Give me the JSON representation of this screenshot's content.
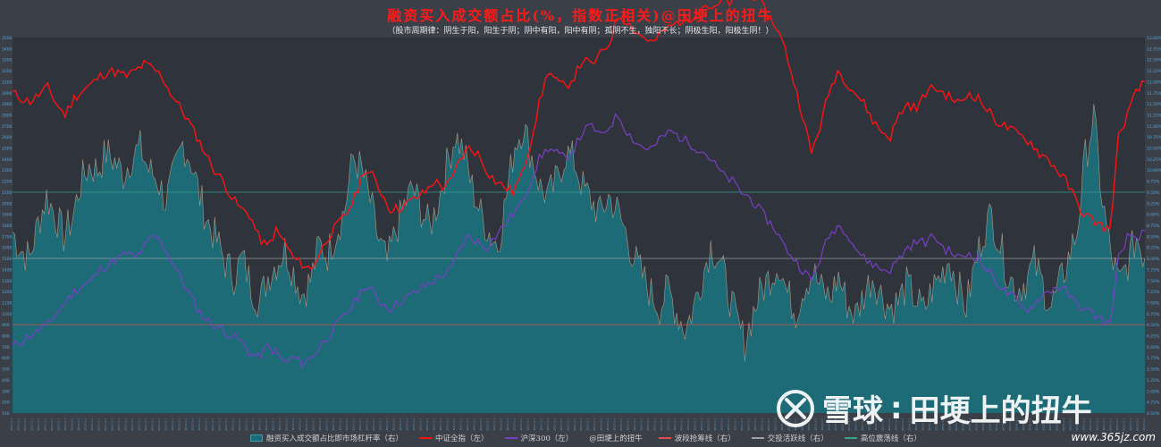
{
  "chart_data": {
    "type": "line",
    "title": "融资买入成交额占比(%，指数正相关)@田埂上的扭牛",
    "subtitle": "（股市周期律：阴生于阳，阳生于阴；阴中有阳，阳中有阴；孤阴不生，独阳不长；阴极生阳，阳极生阴！）",
    "y_left_ticks": [
      "3500",
      "3400",
      "3300",
      "3200",
      "3100",
      "3000",
      "2900",
      "2800",
      "2700",
      "2600",
      "2500",
      "2400",
      "2300",
      "2200",
      "2100",
      "2000",
      "1900",
      "1800",
      "1700",
      "1600",
      "1500",
      "1400",
      "1300",
      "1200",
      "1100",
      "1000",
      "900",
      "800",
      "700",
      "600",
      "500",
      "400",
      "300",
      "200",
      "100"
    ],
    "y_right_ticks": [
      "13.00%",
      "12.75%",
      "12.50%",
      "12.25%",
      "12.00%",
      "11.75%",
      "11.50%",
      "11.25%",
      "11.00%",
      "10.75%",
      "10.50%",
      "10.25%",
      "10.00%",
      "9.75%",
      "9.50%",
      "9.25%",
      "9.00%",
      "8.75%",
      "8.50%",
      "8.25%",
      "8.00%",
      "7.75%",
      "7.50%",
      "7.25%",
      "7.00%",
      "6.75%",
      "6.50%",
      "6.25%",
      "6.00%",
      "5.75%",
      "5.50%",
      "5.25%",
      "5.00%",
      "4.75%",
      "4.50%"
    ],
    "ref_lines_right_pct": [
      9.5,
      8.0,
      6.5
    ],
    "margin_ratio_pct": [
      8.6,
      8.2,
      8.0,
      8.8,
      9.4,
      9.0,
      8.5,
      8.9,
      9.7,
      10.1,
      10.0,
      10.4,
      10.2,
      9.9,
      10.3,
      10.5,
      10.0,
      9.8,
      9.3,
      9.9,
      10.6,
      10.2,
      9.4,
      8.8,
      8.4,
      7.9,
      7.6,
      8.0,
      7.4,
      7.0,
      7.6,
      7.9,
      8.2,
      7.7,
      7.2,
      7.5,
      8.3,
      8.1,
      8.6,
      9.1,
      10.3,
      10.0,
      9.3,
      8.4,
      7.9,
      8.6,
      9.2,
      9.6,
      9.1,
      8.7,
      9.3,
      10.1,
      10.8,
      10.4,
      9.6,
      9.0,
      8.6,
      8.3,
      9.4,
      10.6,
      11.0,
      10.3,
      9.6,
      9.4,
      9.8,
      10.4,
      10.2,
      9.6,
      9.3,
      9.0,
      9.4,
      9.1,
      8.6,
      8.0,
      7.6,
      7.2,
      6.9,
      7.3,
      6.8,
      6.4,
      6.9,
      7.6,
      8.3,
      8.0,
      7.3,
      6.6,
      6.1,
      6.8,
      7.3,
      7.6,
      7.9,
      7.2,
      6.8,
      7.4,
      7.7,
      7.3,
      7.1,
      7.6,
      7.0,
      6.7,
      7.2,
      7.6,
      7.2,
      6.9,
      7.0,
      7.4,
      7.1,
      6.8,
      7.3,
      7.6,
      8.0,
      7.4,
      6.9,
      7.8,
      8.6,
      9.0,
      8.3,
      7.6,
      7.3,
      7.5,
      7.9,
      7.4,
      6.9,
      7.4,
      8.0,
      8.6,
      10.3,
      11.2,
      9.3,
      8.1,
      7.4,
      7.9,
      8.5,
      8.0
    ],
    "csi_all_left": [
      3000,
      2950,
      2920,
      2980,
      3050,
      2900,
      2800,
      2950,
      3020,
      3080,
      3150,
      3200,
      3180,
      3150,
      3200,
      3260,
      3220,
      3150,
      3000,
      2880,
      2750,
      2600,
      2450,
      2300,
      2200,
      2050,
      1950,
      1900,
      1700,
      1600,
      1750,
      1650,
      1500,
      1450,
      1400,
      1550,
      1700,
      1800,
      1900,
      2050,
      2300,
      2250,
      2100,
      1950,
      1950,
      2000,
      2050,
      2100,
      2200,
      2150,
      2200,
      2400,
      2500,
      2450,
      2300,
      2200,
      2150,
      2100,
      2250,
      2550,
      2900,
      3200,
      3100,
      3050,
      3150,
      3300,
      3250,
      3350,
      3450,
      3700,
      3650,
      3550,
      3500,
      3450,
      3550,
      3600,
      3650,
      3650,
      3750,
      3800,
      3750,
      3850,
      3800,
      3900,
      3900,
      3850,
      3700,
      3600,
      3400,
      3100,
      2800,
      2450,
      2700,
      3000,
      3200,
      3100,
      3000,
      2900,
      2750,
      2650,
      2600,
      2800,
      2900,
      2850,
      3000,
      3050,
      3000,
      2950,
      2900,
      3000,
      2950,
      2850,
      2750,
      2700,
      2650,
      2600,
      2550,
      2450,
      2400,
      2300,
      2200,
      2050,
      1900,
      1850,
      1800,
      1750,
      2600,
      2800,
      3000,
      3100
    ],
    "hs300_left": [
      700,
      750,
      800,
      850,
      900,
      1000,
      1100,
      1200,
      1250,
      1300,
      1400,
      1450,
      1500,
      1550,
      1500,
      1600,
      1700,
      1650,
      1500,
      1350,
      1200,
      1050,
      950,
      900,
      850,
      800,
      750,
      650,
      600,
      700,
      650,
      550,
      600,
      550,
      600,
      700,
      800,
      900,
      1000,
      1100,
      1250,
      1200,
      1100,
      1050,
      1100,
      1150,
      1200,
      1250,
      1300,
      1350,
      1400,
      1600,
      1700,
      1650,
      1600,
      1700,
      1800,
      1900,
      2000,
      2200,
      2400,
      2500,
      2450,
      2400,
      2500,
      2650,
      2700,
      2600,
      2700,
      2800,
      2650,
      2550,
      2500,
      2500,
      2600,
      2650,
      2600,
      2550,
      2500,
      2450,
      2350,
      2250,
      2200,
      2100,
      2050,
      1950,
      1850,
      1750,
      1600,
      1500,
      1400,
      1300,
      1500,
      1700,
      1800,
      1750,
      1600,
      1500,
      1450,
      1400,
      1400,
      1500,
      1600,
      1650,
      1650,
      1700,
      1600,
      1550,
      1500,
      1550,
      1500,
      1400,
      1300,
      1200,
      1150,
      1050,
      1050,
      1150,
      1200,
      1250,
      1200,
      1100,
      1050,
      1000,
      950,
      900,
      1500,
      1700,
      1650,
      1750
    ],
    "legend": [
      "融资买入成交额占比即市场杠杆率（右）",
      "中证全指（左）",
      "沪深300（左）",
      "@田埂上的扭牛",
      "波段抢筹线（右）",
      "交投活跃线（右）",
      "高位震荡线（右）"
    ],
    "x_label_count": 170,
    "x_axis_label": "2015-1-1"
  },
  "colors": {
    "background": "#3a3f48",
    "plot_bg": "#2e333c",
    "area_fill": "#1e6b78",
    "area_stroke": "#c8a48a",
    "csi_all": "#ff1212",
    "hs300": "#7a3fc4",
    "line_buy": "#e05050",
    "line_active": "#a0a0a0",
    "line_high": "#3aa090"
  },
  "watermark": {
    "brand": "雪球",
    "sep": ":",
    "author": "田埂上的扭牛",
    "icon": "xueqiu-logo-icon"
  },
  "site": "www.365jz.com"
}
